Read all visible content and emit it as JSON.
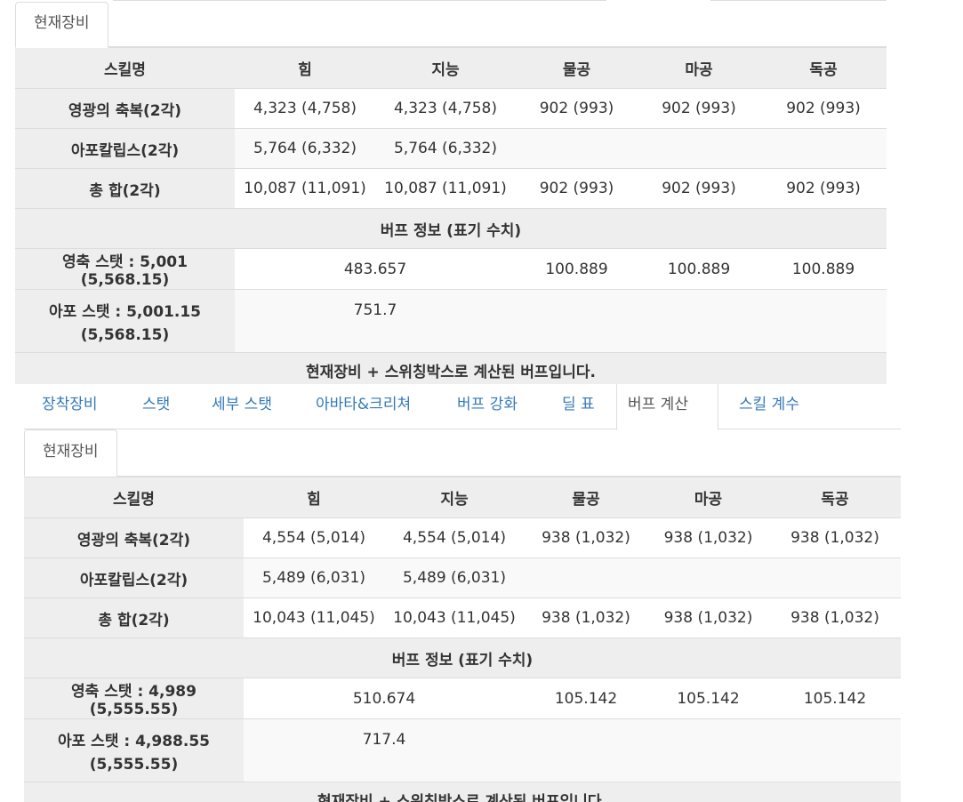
{
  "sub_tab_label": "현재장비",
  "main_tabs": [
    "장착장비",
    "스탯",
    "세부 스탯",
    "아바타&크리쳐",
    "버프 강화",
    "딜 표",
    "버프 계산",
    "스킬 계수"
  ],
  "headers": [
    "스킬명",
    "힘",
    "지능",
    "물공",
    "마공",
    "독공"
  ],
  "buff_info_title": "버프 정보 (표기 수치)",
  "note": "현재장비 + 스위칭박스로 계산된 버프입니다.",
  "top": {
    "rows": [
      {
        "name": "영광의 축복(2각)",
        "vals": [
          "4,323 (4,758)",
          "4,323 (4,758)",
          "902 (993)",
          "902 (993)",
          "902 (993)"
        ]
      },
      {
        "name": "아포칼립스(2각)",
        "vals": [
          "5,764 (6,332)",
          "5,764 (6,332)",
          "",
          "",
          ""
        ]
      },
      {
        "name": "총 합(2각)",
        "vals": [
          "10,087 (11,091)",
          "10,087 (11,091)",
          "902 (993)",
          "902 (993)",
          "902 (993)"
        ]
      }
    ],
    "buff_rows": [
      {
        "name": "영축 스탯 : 5,001 (5,568.15)",
        "stat": "483.657",
        "vals": [
          "100.889",
          "100.889",
          "100.889"
        ]
      },
      {
        "name": "아포 스탯 : 5,001.15 (5,568.15)",
        "stat": "751.7",
        "vals": [
          "",
          "",
          ""
        ]
      }
    ]
  },
  "bottom": {
    "rows": [
      {
        "name": "영광의 축복(2각)",
        "vals": [
          "4,554 (5,014)",
          "4,554 (5,014)",
          "938 (1,032)",
          "938 (1,032)",
          "938 (1,032)"
        ]
      },
      {
        "name": "아포칼립스(2각)",
        "vals": [
          "5,489 (6,031)",
          "5,489 (6,031)",
          "",
          "",
          ""
        ]
      },
      {
        "name": "총 합(2각)",
        "vals": [
          "10,043 (11,045)",
          "10,043 (11,045)",
          "938 (1,032)",
          "938 (1,032)",
          "938 (1,032)"
        ]
      }
    ],
    "buff_rows": [
      {
        "name": "영축 스탯 : 4,989 (5,555.55)",
        "stat": "510.674",
        "vals": [
          "105.142",
          "105.142",
          "105.142"
        ]
      },
      {
        "name": "아포 스탯 : 4,988.55 (5,555.55)",
        "stat": "717.4",
        "vals": [
          "",
          "",
          ""
        ]
      }
    ]
  }
}
